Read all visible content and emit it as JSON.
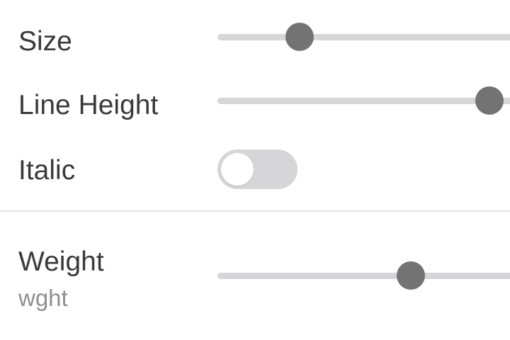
{
  "settings": {
    "size": {
      "label": "Size",
      "slider_fraction": 0.28
    },
    "line_height": {
      "label": "Line Height",
      "slider_fraction": 0.93
    },
    "italic": {
      "label": "Italic",
      "enabled": false
    }
  },
  "axes": {
    "weight": {
      "label": "Weight",
      "tag": "wght",
      "slider_fraction": 0.66
    }
  },
  "colors": {
    "track": "#d6d6d9",
    "thumb": "#737373",
    "toggle_off": "#d6d6d9",
    "label": "#3a3a3c",
    "sublabel": "#8e8e93",
    "divider": "#e3e3e6"
  }
}
